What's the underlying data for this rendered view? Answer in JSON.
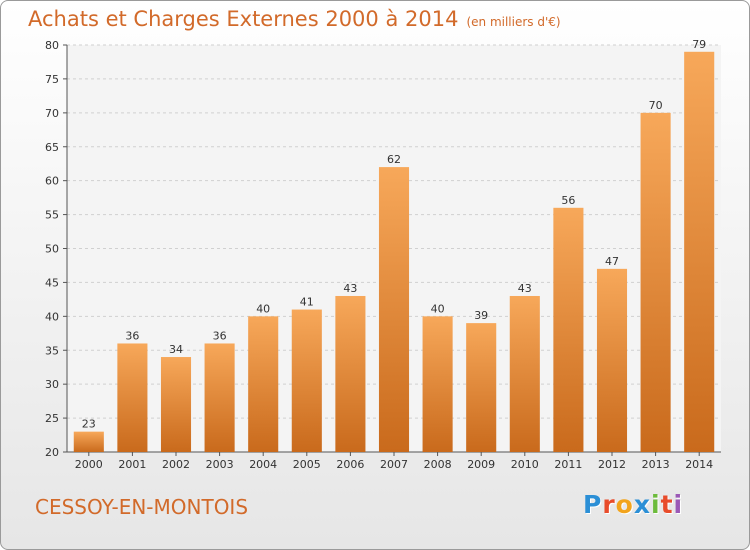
{
  "chart_data": {
    "type": "bar",
    "title": "Achats et Charges Externes 2000 à 2014",
    "subtitle": "(en milliers d'€)",
    "categories": [
      "2000",
      "2001",
      "2002",
      "2003",
      "2004",
      "2005",
      "2006",
      "2007",
      "2008",
      "2009",
      "2010",
      "2011",
      "2012",
      "2013",
      "2014"
    ],
    "values": [
      23,
      36,
      34,
      36,
      40,
      41,
      43,
      62,
      40,
      39,
      43,
      56,
      47,
      70,
      79
    ],
    "ylim": [
      20,
      80
    ],
    "yticks": [
      20,
      25,
      30,
      35,
      40,
      45,
      50,
      55,
      60,
      65,
      70,
      75,
      80
    ],
    "grid": true,
    "bar_color": "#f0923e",
    "bar_color_top": "#f7a85a",
    "bar_color_bottom": "#c96a1c"
  },
  "footer": {
    "commune": "CESSOY-EN-MONTOIS",
    "logo_letters": [
      "P",
      "r",
      "o",
      "x",
      "i",
      "t",
      "i"
    ],
    "logo_colors": [
      "#2b8fd6",
      "#e84c2b",
      "#f2a41c",
      "#2b8fd6",
      "#6dbb3c",
      "#e84c2b",
      "#9b59b6"
    ]
  }
}
